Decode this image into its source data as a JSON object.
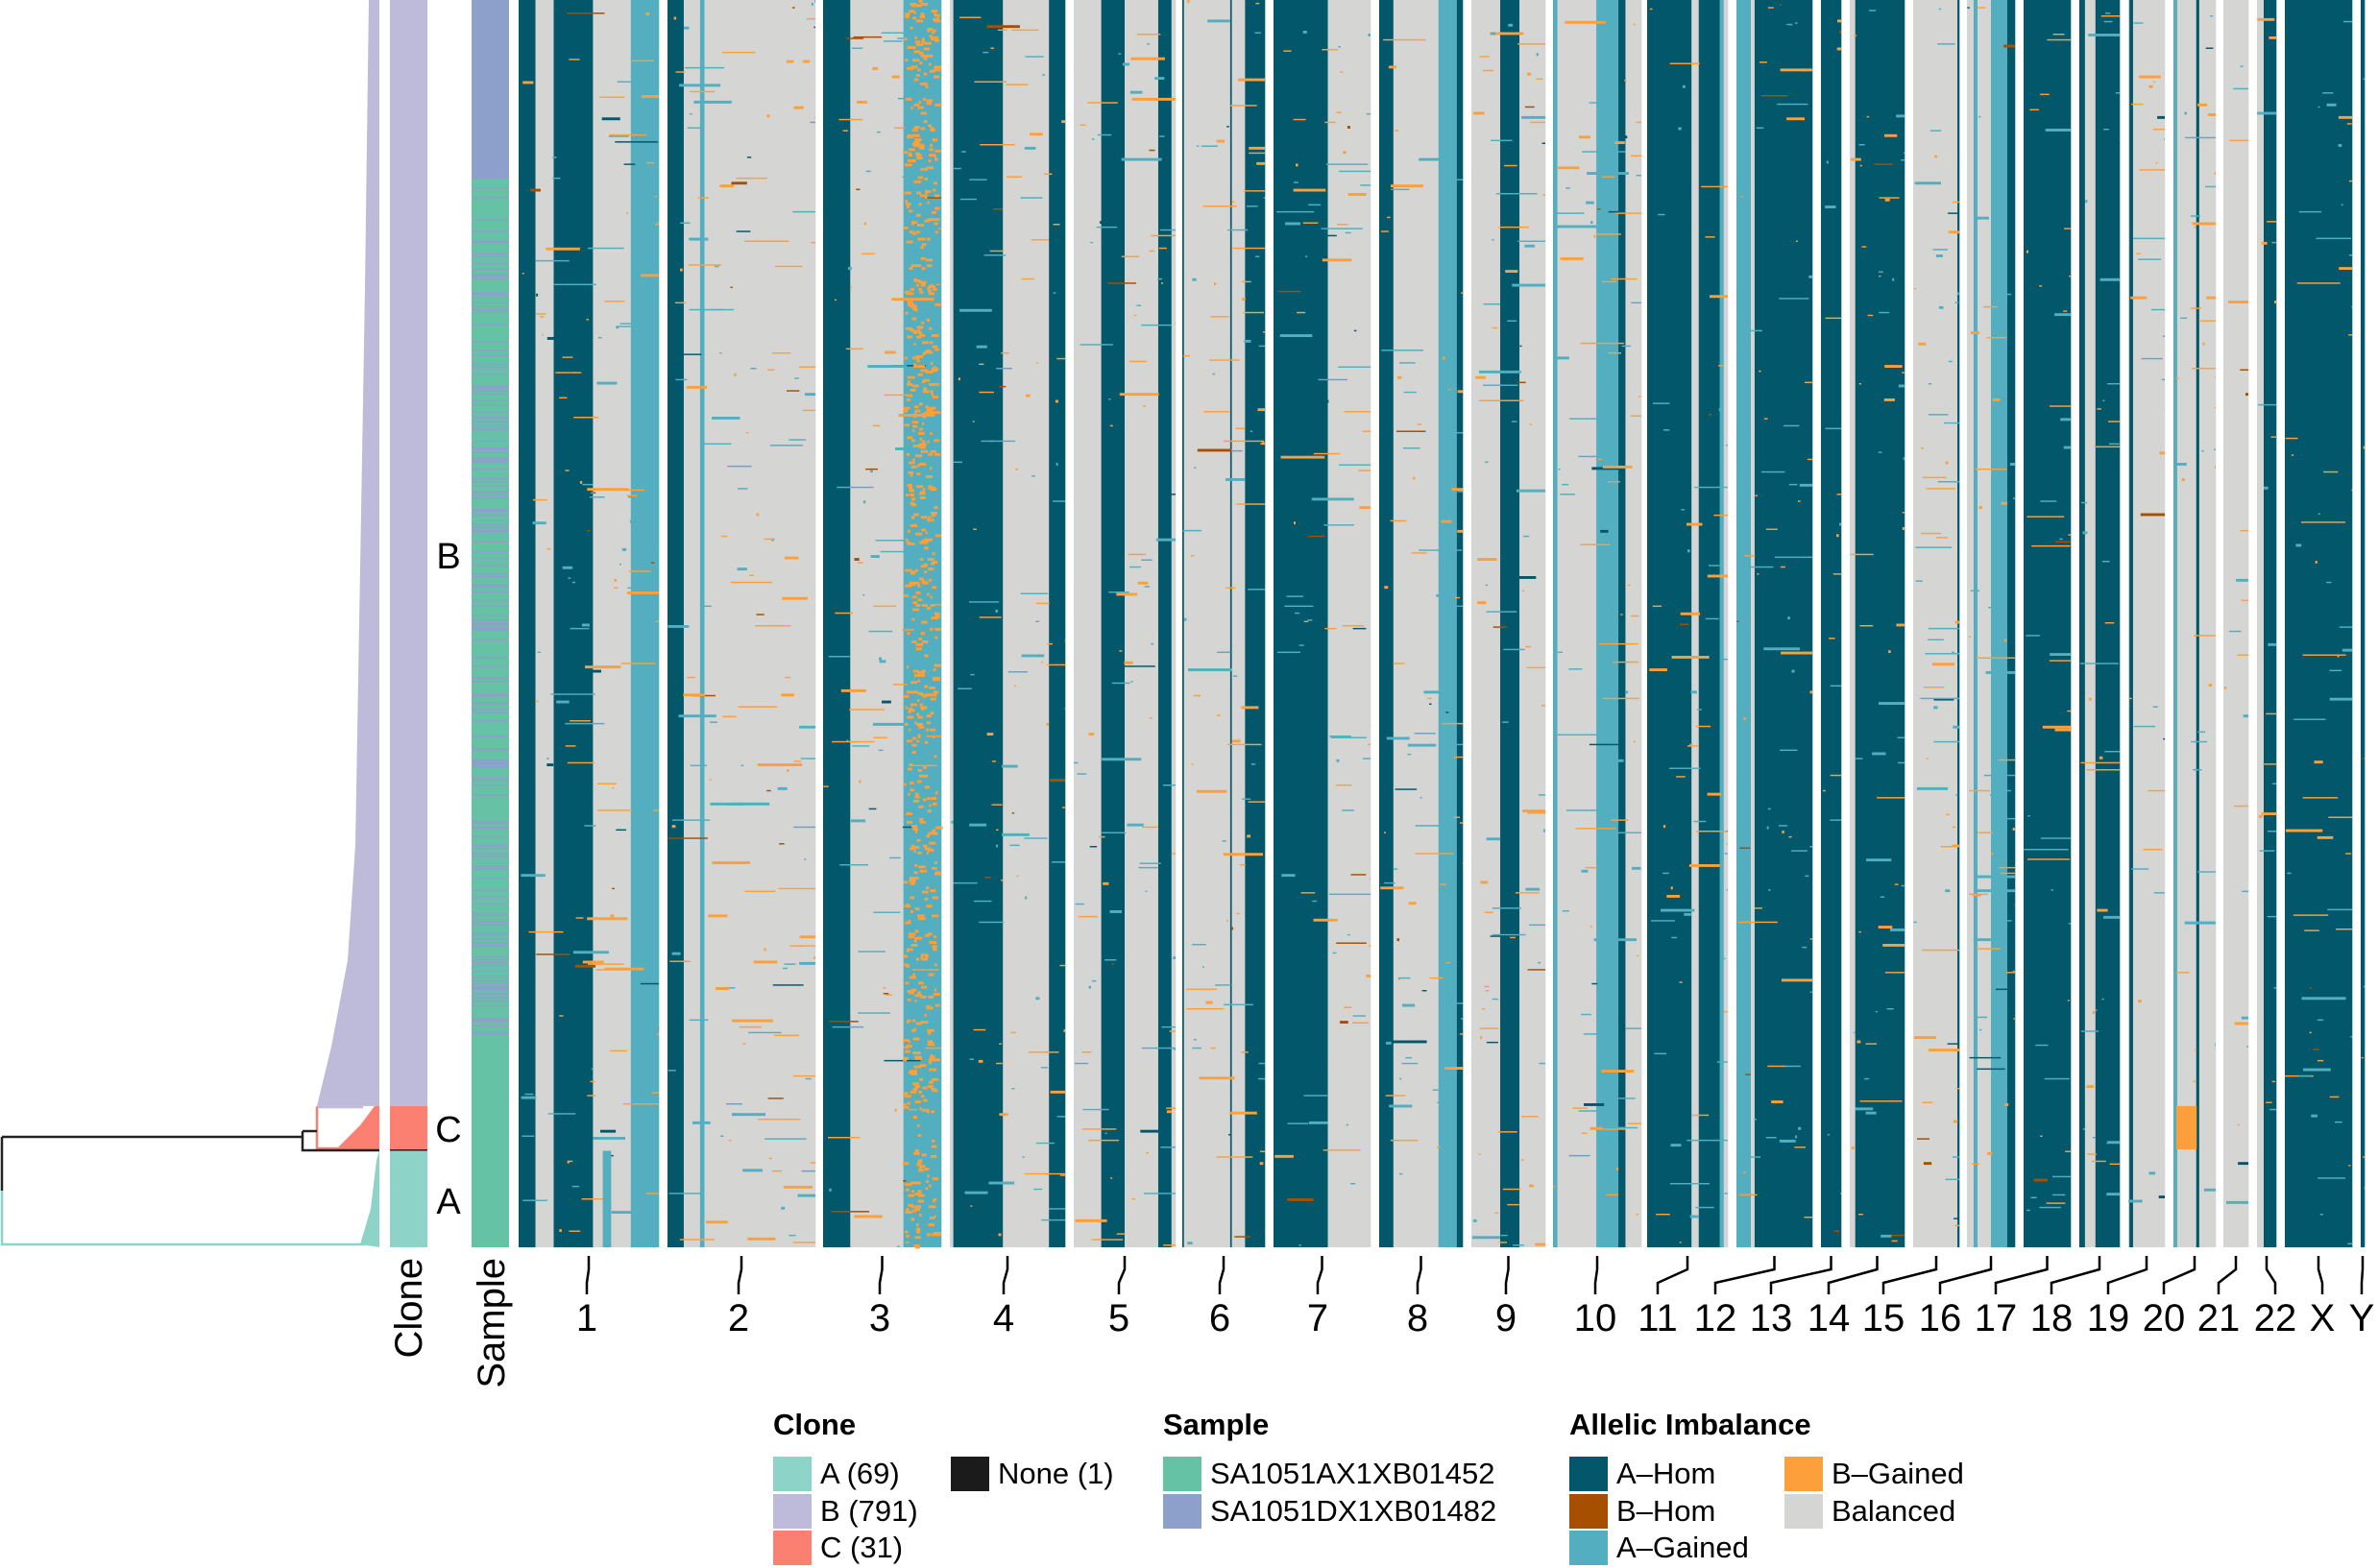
{
  "colors": {
    "A-Hom": "#02576a",
    "B-Hom": "#a64f00",
    "A-Gained": "#53aec0",
    "B-Gained": "#fd9f3a",
    "Balanced": "#d5d5d4",
    "clone_A": "#8dd3c7",
    "clone_B": "#bebada",
    "clone_C": "#fb8072",
    "clone_None": "#1b1b1b",
    "sample_AX": "#66c2a5",
    "sample_DX": "#8da0cb",
    "tree": "#222222"
  },
  "chart_data": {
    "type": "heatmap",
    "row_annotations": {
      "clone_label": "Clone",
      "sample_label": "Sample",
      "clone_track_labels": [
        "B",
        "C",
        "A"
      ]
    },
    "clones": [
      {
        "name": "B",
        "count": 791
      },
      {
        "name": "C",
        "count": 31
      },
      {
        "name": "None",
        "count": 1
      },
      {
        "name": "A",
        "count": 69
      }
    ],
    "samples": [
      "SA1051AX1XB01452",
      "SA1051DX1XB01482"
    ],
    "states": [
      "A-Hom",
      "B-Hom",
      "A-Gained",
      "B-Gained",
      "Balanced"
    ],
    "chromosomes": [
      {
        "name": "1",
        "segments": [
          [
            "A-Hom",
            0.12
          ],
          [
            "Balanced",
            0.13
          ],
          [
            "A-Hom",
            0.28
          ],
          [
            "Balanced",
            0.27
          ],
          [
            "A-Gained",
            0.2
          ]
        ]
      },
      {
        "name": "2",
        "segments": [
          [
            "A-Hom",
            0.11
          ],
          [
            "Balanced",
            0.11
          ],
          [
            "A-Gained",
            0.03
          ],
          [
            "Balanced",
            0.75
          ]
        ]
      },
      {
        "name": "3",
        "segments": [
          [
            "A-Hom",
            0.23
          ],
          [
            "Balanced",
            0.45
          ],
          [
            "A-Gained",
            0.32
          ]
        ]
      },
      {
        "name": "4",
        "segments": [
          [
            "Balanced",
            0.03
          ],
          [
            "A-Hom",
            0.43
          ],
          [
            "Balanced",
            0.4
          ],
          [
            "A-Hom",
            0.14
          ]
        ]
      },
      {
        "name": "5",
        "segments": [
          [
            "Balanced",
            0.27
          ],
          [
            "A-Hom",
            0.23
          ],
          [
            "Balanced",
            0.33
          ],
          [
            "A-Hom",
            0.13
          ],
          [
            "Balanced",
            0.04
          ]
        ]
      },
      {
        "name": "6",
        "segments": [
          [
            "A-Hom",
            0.02
          ],
          [
            "Balanced",
            0.56
          ],
          [
            "A-Hom",
            0.02
          ],
          [
            "Balanced",
            0.16
          ],
          [
            "A-Hom",
            0.24
          ]
        ]
      },
      {
        "name": "7",
        "segments": [
          [
            "A-Hom",
            0.56
          ],
          [
            "Balanced",
            0.44
          ]
        ]
      },
      {
        "name": "8",
        "segments": [
          [
            "A-Hom",
            0.17
          ],
          [
            "Balanced",
            0.54
          ],
          [
            "A-Gained",
            0.22
          ],
          [
            "A-Hom",
            0.07
          ]
        ]
      },
      {
        "name": "9",
        "segments": [
          [
            "Balanced",
            0.39
          ],
          [
            "A-Hom",
            0.26
          ],
          [
            "Balanced",
            0.35
          ]
        ]
      },
      {
        "name": "10",
        "segments": [
          [
            "A-Gained",
            0.05
          ],
          [
            "Balanced",
            0.44
          ],
          [
            "A-Gained",
            0.25
          ],
          [
            "A-Hom",
            0.08
          ],
          [
            "Balanced",
            0.18
          ]
        ]
      },
      {
        "name": "11",
        "segments": [
          [
            "A-Hom",
            0.55
          ],
          [
            "Balanced",
            0.09
          ],
          [
            "A-Hom",
            0.26
          ],
          [
            "A-Gained",
            0.05
          ],
          [
            "Balanced",
            0.05
          ]
        ]
      },
      {
        "name": "12",
        "segments": [
          [
            "A-Gained",
            0.19
          ],
          [
            "Balanced",
            0.05
          ],
          [
            "A-Hom",
            0.76
          ]
        ]
      },
      {
        "name": "13",
        "segments": [
          [
            "A-Hom",
            1.0
          ]
        ]
      },
      {
        "name": "14",
        "segments": [
          [
            "Balanced",
            0.1
          ],
          [
            "A-Hom",
            0.9
          ]
        ]
      },
      {
        "name": "15",
        "segments": [
          [
            "Balanced",
            0.96
          ],
          [
            "A-Hom",
            0.04
          ]
        ]
      },
      {
        "name": "16",
        "segments": [
          [
            "Balanced",
            0.14
          ],
          [
            "A-Gained",
            0.08
          ],
          [
            "Balanced",
            0.28
          ],
          [
            "A-Gained",
            0.34
          ],
          [
            "A-Hom",
            0.16
          ]
        ]
      },
      {
        "name": "17",
        "segments": [
          [
            "A-Hom",
            1.0
          ]
        ]
      },
      {
        "name": "18",
        "segments": [
          [
            "A-Hom",
            0.14
          ],
          [
            "Balanced",
            0.26
          ],
          [
            "A-Hom",
            0.6
          ]
        ]
      },
      {
        "name": "19",
        "segments": [
          [
            "Balanced",
            0.03
          ],
          [
            "A-Hom",
            0.1
          ],
          [
            "Balanced",
            0.87
          ]
        ]
      },
      {
        "name": "20",
        "segments": [
          [
            "A-Gained",
            0.09
          ],
          [
            "Balanced",
            0.45
          ],
          [
            "A-Hom",
            0.07
          ],
          [
            "Balanced",
            0.39
          ]
        ]
      },
      {
        "name": "21",
        "segments": [
          [
            "Balanced",
            1.0
          ]
        ]
      },
      {
        "name": "22",
        "segments": [
          [
            "Balanced",
            0.35
          ],
          [
            "A-Hom",
            0.65
          ]
        ]
      },
      {
        "name": "X",
        "segments": [
          [
            "A-Hom",
            1.0
          ]
        ]
      },
      {
        "name": "Y",
        "segments": [
          [
            "A-Hom",
            1.0
          ]
        ]
      }
    ],
    "clone_specific": [
      {
        "clone": "C",
        "chromosome": "20",
        "state": "B-Gained",
        "from": 0.07,
        "to": 0.55
      },
      {
        "clone": "A",
        "chromosome": "1",
        "state": "A-Gained",
        "from": 0.6,
        "to": 0.66
      }
    ]
  },
  "legend": {
    "clone": {
      "title": "Clone",
      "items": [
        {
          "label": "A (69)",
          "color": "#8dd3c7"
        },
        {
          "label": "B (791)",
          "color": "#bebada"
        },
        {
          "label": "C (31)",
          "color": "#fb8072"
        },
        {
          "label": "None (1)",
          "color": "#1b1b1b"
        }
      ]
    },
    "sample": {
      "title": "Sample",
      "items": [
        {
          "label": "SA1051AX1XB01452",
          "color": "#66c2a5"
        },
        {
          "label": "SA1051DX1XB01482",
          "color": "#8da0cb"
        }
      ]
    },
    "allelic": {
      "title": "Allelic Imbalance",
      "items": [
        {
          "label": "A–Hom",
          "color": "#02576a"
        },
        {
          "label": "B–Hom",
          "color": "#a64f00"
        },
        {
          "label": "A–Gained",
          "color": "#53aec0"
        },
        {
          "label": "B–Gained",
          "color": "#fd9f3a"
        },
        {
          "label": "Balanced",
          "color": "#d5d5d4"
        }
      ]
    }
  }
}
